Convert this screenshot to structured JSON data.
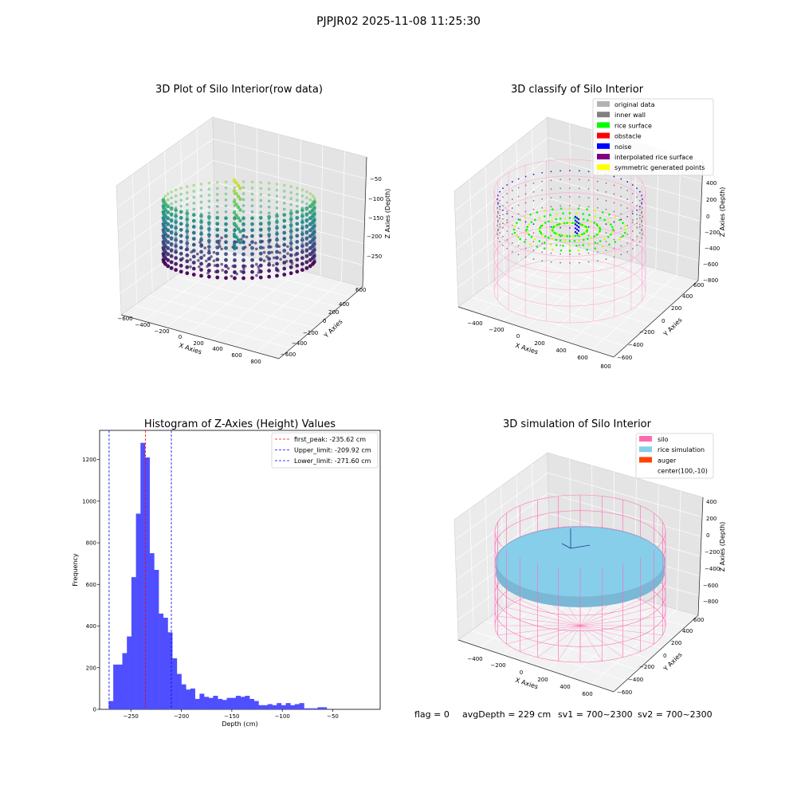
{
  "figure": {
    "suptitle": "PJPJR02 2025-11-08 11:25:30",
    "footer": {
      "flag": "flag = 0",
      "avg_depth": "avgDepth = 229 cm",
      "sv1": "sv1 = 700~2300",
      "sv2": "sv2 = 700~2300"
    }
  },
  "colors": {
    "hist_bar": "#4b4bff",
    "peak_line": "#ff0000",
    "limit_line": "#0000ff",
    "silo_pink": "#ff69b4",
    "rice_blue": "#87ceeb",
    "auger": "#ff4500",
    "rice_surface_green": "#00ff00",
    "inner_wall_gray": "#808080",
    "original_gray": "#b3b3b3",
    "noise_blue": "#0000ff",
    "interp_purple": "#800080",
    "symmetric_yellow": "#ffff00",
    "obstacle_red": "#ff0000"
  },
  "panels": {
    "raw": {
      "title": "3D Plot of Silo Interior(row data)",
      "xlabel": "X Axies",
      "ylabel": "Y Axies",
      "zlabel": "Z Axies (Depth)",
      "xticks": [
        "−600",
        "−400",
        "−200",
        "0",
        "200",
        "400",
        "600",
        "800"
      ],
      "yticks": [
        "600",
        "400",
        "200",
        "0",
        "−200",
        "−400",
        "−600"
      ],
      "zticks": [
        "−50",
        "−100",
        "−150",
        "−200",
        "−250"
      ]
    },
    "classify": {
      "title": "3D classify of Silo Interior",
      "xlabel": "X Axies",
      "ylabel": "Y Axies",
      "zlabel": "Z Axies (Depth)",
      "xticks": [
        "−400",
        "−200",
        "0",
        "200",
        "400",
        "600",
        "800"
      ],
      "yticks": [
        "600",
        "400",
        "200",
        "0",
        "−200",
        "−400",
        "−600"
      ],
      "zticks": [
        "400",
        "200",
        "0",
        "−200",
        "−400",
        "−600",
        "−800"
      ],
      "legend": [
        {
          "label": "original data",
          "color": "#b3b3b3"
        },
        {
          "label": "inner wall",
          "color": "#808080"
        },
        {
          "label": "rice surface",
          "color": "#00ff00"
        },
        {
          "label": "obstacle",
          "color": "#ff0000"
        },
        {
          "label": "noise",
          "color": "#0000ff"
        },
        {
          "label": "interpolated rice surface",
          "color": "#800080"
        },
        {
          "label": "symmetric generated points",
          "color": "#ffff00"
        }
      ]
    },
    "simulation": {
      "title": "3D simulation of Silo Interior",
      "xlabel": "X Axies",
      "ylabel": "Y Axies",
      "zlabel": "Z Axies (Depth)",
      "xticks": [
        "−400",
        "−200",
        "0",
        "200",
        "400",
        "600"
      ],
      "yticks": [
        "600",
        "400",
        "200",
        "0",
        "−200",
        "−400",
        "−600"
      ],
      "zticks": [
        "400",
        "200",
        "0",
        "−200",
        "−400",
        "−600",
        "−800"
      ],
      "legend": [
        {
          "label": "silo",
          "color": "#ff69b4"
        },
        {
          "label": "rice simulation",
          "color": "#87ceeb"
        },
        {
          "label": "auger",
          "color": "#ff4500"
        },
        {
          "label": "center(100,-10)",
          "color": ""
        }
      ]
    }
  },
  "chart_data": {
    "type": "bar",
    "title": "Histogram of Z-Axies (Height) Values",
    "xlabel": "Depth (cm)",
    "ylabel": "Frequency",
    "xlim": [
      -281,
      -3
    ],
    "ylim": [
      0,
      1340
    ],
    "xticks": [
      -250,
      -200,
      -150,
      -100,
      -50
    ],
    "xtick_labels": [
      "−250",
      "−200",
      "−150",
      "−100",
      "−50"
    ],
    "yticks": [
      0,
      200,
      400,
      600,
      800,
      1000,
      1200
    ],
    "bin_start": -272,
    "bin_width": 4.5,
    "values": [
      40,
      215,
      215,
      270,
      350,
      635,
      940,
      1280,
      1210,
      750,
      670,
      460,
      440,
      370,
      245,
      170,
      120,
      95,
      100,
      50,
      75,
      60,
      55,
      65,
      50,
      45,
      55,
      55,
      65,
      60,
      65,
      50,
      40,
      20,
      20,
      25,
      20,
      30,
      20,
      30,
      20,
      25,
      30,
      5,
      5,
      5,
      10,
      10
    ],
    "vlines": [
      {
        "label": "first_peak: -235.62 cm",
        "x": -235.62,
        "color": "#ff0000"
      },
      {
        "label": "Upper_limit: -209.92 cm",
        "x": -209.92,
        "color": "#0000ff"
      },
      {
        "label": "Lower_limit: -271.60 cm",
        "x": -271.6,
        "color": "#0000ff"
      }
    ],
    "legend": "top-right",
    "grid": false
  }
}
